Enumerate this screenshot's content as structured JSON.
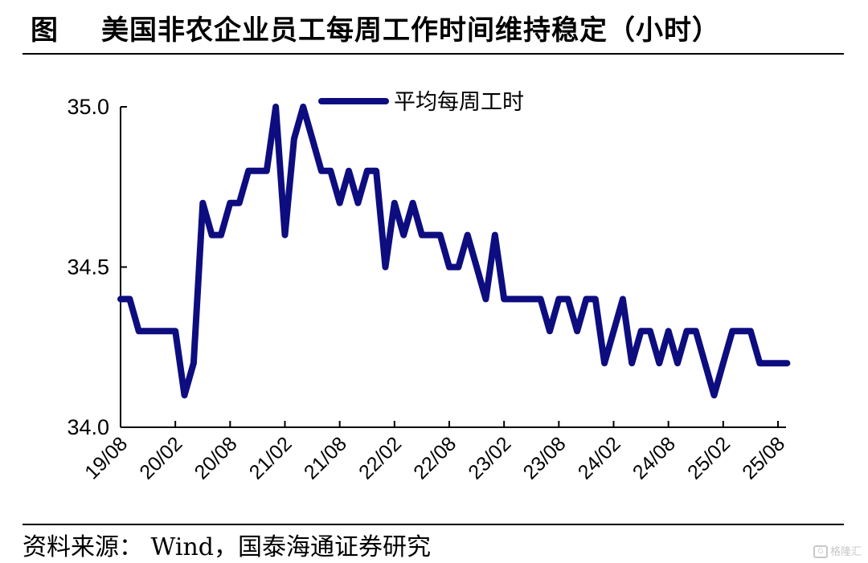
{
  "title": {
    "prefix": "图",
    "text": "美国非农企业员工每周工作时间维持稳定（小时）"
  },
  "source": "资料来源： Wind，国泰海通证券研究",
  "watermark": "格隆汇",
  "colors": {
    "series": "#0d0d80",
    "axis": "#000000"
  },
  "chart_data": {
    "type": "line",
    "title": "美国非农企业员工每周工作时间维持稳定（小时）",
    "xlabel": "",
    "ylabel": "",
    "ylim": [
      34.0,
      35.0
    ],
    "yticks": [
      "34.0",
      "34.5",
      "35.0"
    ],
    "xticks": [
      "19/08",
      "20/02",
      "20/08",
      "21/02",
      "21/08",
      "22/02",
      "22/08",
      "23/02",
      "23/08",
      "24/02",
      "24/08",
      "25/02",
      "25/08"
    ],
    "legend_position": "top",
    "grid": false,
    "series": [
      {
        "name": "平均每周工时",
        "x": [
          "2019-08",
          "2019-09",
          "2019-10",
          "2019-11",
          "2019-12",
          "2020-01",
          "2020-02",
          "2020-03",
          "2020-04",
          "2020-05",
          "2020-06",
          "2020-07",
          "2020-08",
          "2020-09",
          "2020-10",
          "2020-11",
          "2020-12",
          "2021-01",
          "2021-02",
          "2021-03",
          "2021-04",
          "2021-05",
          "2021-06",
          "2021-07",
          "2021-08",
          "2021-09",
          "2021-10",
          "2021-11",
          "2021-12",
          "2022-01",
          "2022-02",
          "2022-03",
          "2022-04",
          "2022-05",
          "2022-06",
          "2022-07",
          "2022-08",
          "2022-09",
          "2022-10",
          "2022-11",
          "2022-12",
          "2023-01",
          "2023-02",
          "2023-03",
          "2023-04",
          "2023-05",
          "2023-06",
          "2023-07",
          "2023-08",
          "2023-09",
          "2023-10",
          "2023-11",
          "2023-12",
          "2024-01",
          "2024-02",
          "2024-03",
          "2024-04",
          "2024-05",
          "2024-06",
          "2024-07",
          "2024-08",
          "2024-09",
          "2024-10",
          "2024-11",
          "2024-12",
          "2025-01",
          "2025-02",
          "2025-03",
          "2025-04",
          "2025-05",
          "2025-06",
          "2025-07",
          "2025-08",
          "2025-09"
        ],
        "values": [
          34.4,
          34.4,
          34.3,
          34.3,
          34.3,
          34.3,
          34.3,
          34.1,
          34.2,
          34.7,
          34.6,
          34.6,
          34.7,
          34.7,
          34.8,
          34.8,
          34.8,
          35.0,
          34.6,
          34.9,
          35.0,
          34.9,
          34.8,
          34.8,
          34.7,
          34.8,
          34.7,
          34.8,
          34.8,
          34.5,
          34.7,
          34.6,
          34.7,
          34.6,
          34.6,
          34.6,
          34.5,
          34.5,
          34.6,
          34.5,
          34.4,
          34.6,
          34.4,
          34.4,
          34.4,
          34.4,
          34.4,
          34.3,
          34.4,
          34.4,
          34.3,
          34.4,
          34.4,
          34.2,
          34.3,
          34.4,
          34.2,
          34.3,
          34.3,
          34.2,
          34.3,
          34.2,
          34.3,
          34.3,
          34.2,
          34.1,
          34.2,
          34.3,
          34.3,
          34.3,
          34.2,
          34.2,
          34.2,
          34.2
        ]
      }
    ]
  }
}
